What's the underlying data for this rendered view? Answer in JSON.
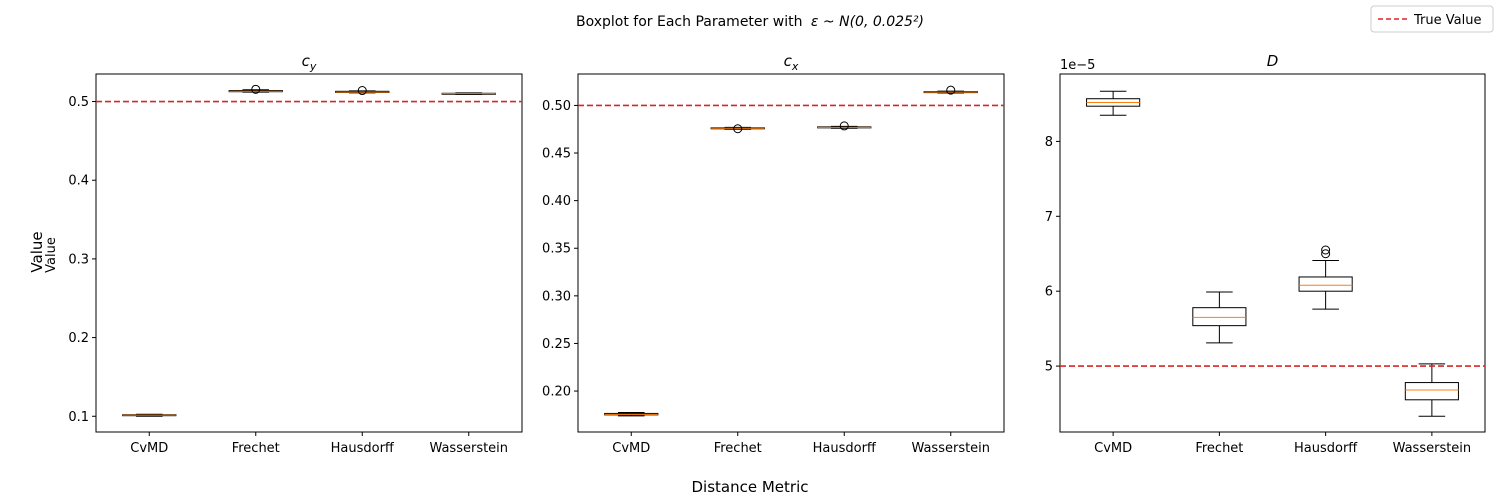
{
  "figure": {
    "suptitle": "Boxplot for Each Parameter with",
    "suptitle_math": "ε ~ N(0, 0.025²)",
    "xlabel": "Distance Metric",
    "ylabel_outer": "Value",
    "ylabel_inner": "Value",
    "legend": {
      "label": "True Value",
      "color": "#d62728",
      "placement": "top-right"
    }
  },
  "chart_data": [
    {
      "type": "boxplot",
      "title": "c",
      "title_sub": "y",
      "categories": [
        "CvMD",
        "Frechet",
        "Hausdorff",
        "Wasserstein"
      ],
      "ylim": [
        0.08,
        0.535
      ],
      "yticks": [
        0.1,
        0.2,
        0.3,
        0.4,
        0.5
      ],
      "ytick_labels": [
        "0.1",
        "0.2",
        "0.3",
        "0.4",
        "0.5"
      ],
      "multiplier": "",
      "true_value": 0.5,
      "boxes": [
        {
          "whislo": 0.1,
          "q1": 0.101,
          "med": 0.1015,
          "q3": 0.102,
          "whishi": 0.1025,
          "fliers": []
        },
        {
          "whislo": 0.512,
          "q1": 0.5125,
          "med": 0.513,
          "q3": 0.514,
          "whishi": 0.515,
          "fliers": [
            0.5155
          ]
        },
        {
          "whislo": 0.511,
          "q1": 0.5115,
          "med": 0.512,
          "q3": 0.513,
          "whishi": 0.5135,
          "fliers": [
            0.514
          ]
        },
        {
          "whislo": 0.509,
          "q1": 0.5095,
          "med": 0.51,
          "q3": 0.5105,
          "whishi": 0.511,
          "fliers": []
        }
      ]
    },
    {
      "type": "boxplot",
      "title": "c",
      "title_sub": "x",
      "categories": [
        "CvMD",
        "Frechet",
        "Hausdorff",
        "Wasserstein"
      ],
      "ylim": [
        0.157,
        0.533
      ],
      "yticks": [
        0.2,
        0.25,
        0.3,
        0.35,
        0.4,
        0.45,
        0.5
      ],
      "ytick_labels": [
        "0.20",
        "0.25",
        "0.30",
        "0.35",
        "0.40",
        "0.45",
        "0.50"
      ],
      "multiplier": "",
      "true_value": 0.5,
      "boxes": [
        {
          "whislo": 0.174,
          "q1": 0.175,
          "med": 0.1755,
          "q3": 0.1765,
          "whishi": 0.1775,
          "fliers": []
        },
        {
          "whislo": 0.475,
          "q1": 0.4755,
          "med": 0.476,
          "q3": 0.4765,
          "whishi": 0.477,
          "fliers": [
            0.4755
          ]
        },
        {
          "whislo": 0.476,
          "q1": 0.4765,
          "med": 0.477,
          "q3": 0.4775,
          "whishi": 0.478,
          "fliers": [
            0.4785
          ]
        },
        {
          "whislo": 0.513,
          "q1": 0.5135,
          "med": 0.514,
          "q3": 0.5145,
          "whishi": 0.515,
          "fliers": [
            0.516
          ]
        }
      ]
    },
    {
      "type": "boxplot",
      "title": "D",
      "title_sub": "",
      "categories": [
        "CvMD",
        "Frechet",
        "Hausdorff",
        "Wasserstein"
      ],
      "ylim": [
        4.12,
        8.9
      ],
      "yticks": [
        5,
        6,
        7,
        8
      ],
      "ytick_labels": [
        "5",
        "6",
        "7",
        "8"
      ],
      "multiplier": "1e−5",
      "true_value": 5.0,
      "boxes": [
        {
          "whislo": 8.35,
          "q1": 8.47,
          "med": 8.52,
          "q3": 8.57,
          "whishi": 8.67,
          "fliers": []
        },
        {
          "whislo": 5.31,
          "q1": 5.54,
          "med": 5.65,
          "q3": 5.78,
          "whishi": 5.99,
          "fliers": []
        },
        {
          "whislo": 5.76,
          "q1": 6.0,
          "med": 6.08,
          "q3": 6.19,
          "whishi": 6.41,
          "fliers": [
            6.5,
            6.55
          ]
        },
        {
          "whislo": 4.33,
          "q1": 4.55,
          "med": 4.68,
          "q3": 4.78,
          "whishi": 5.03,
          "fliers": []
        }
      ]
    }
  ]
}
